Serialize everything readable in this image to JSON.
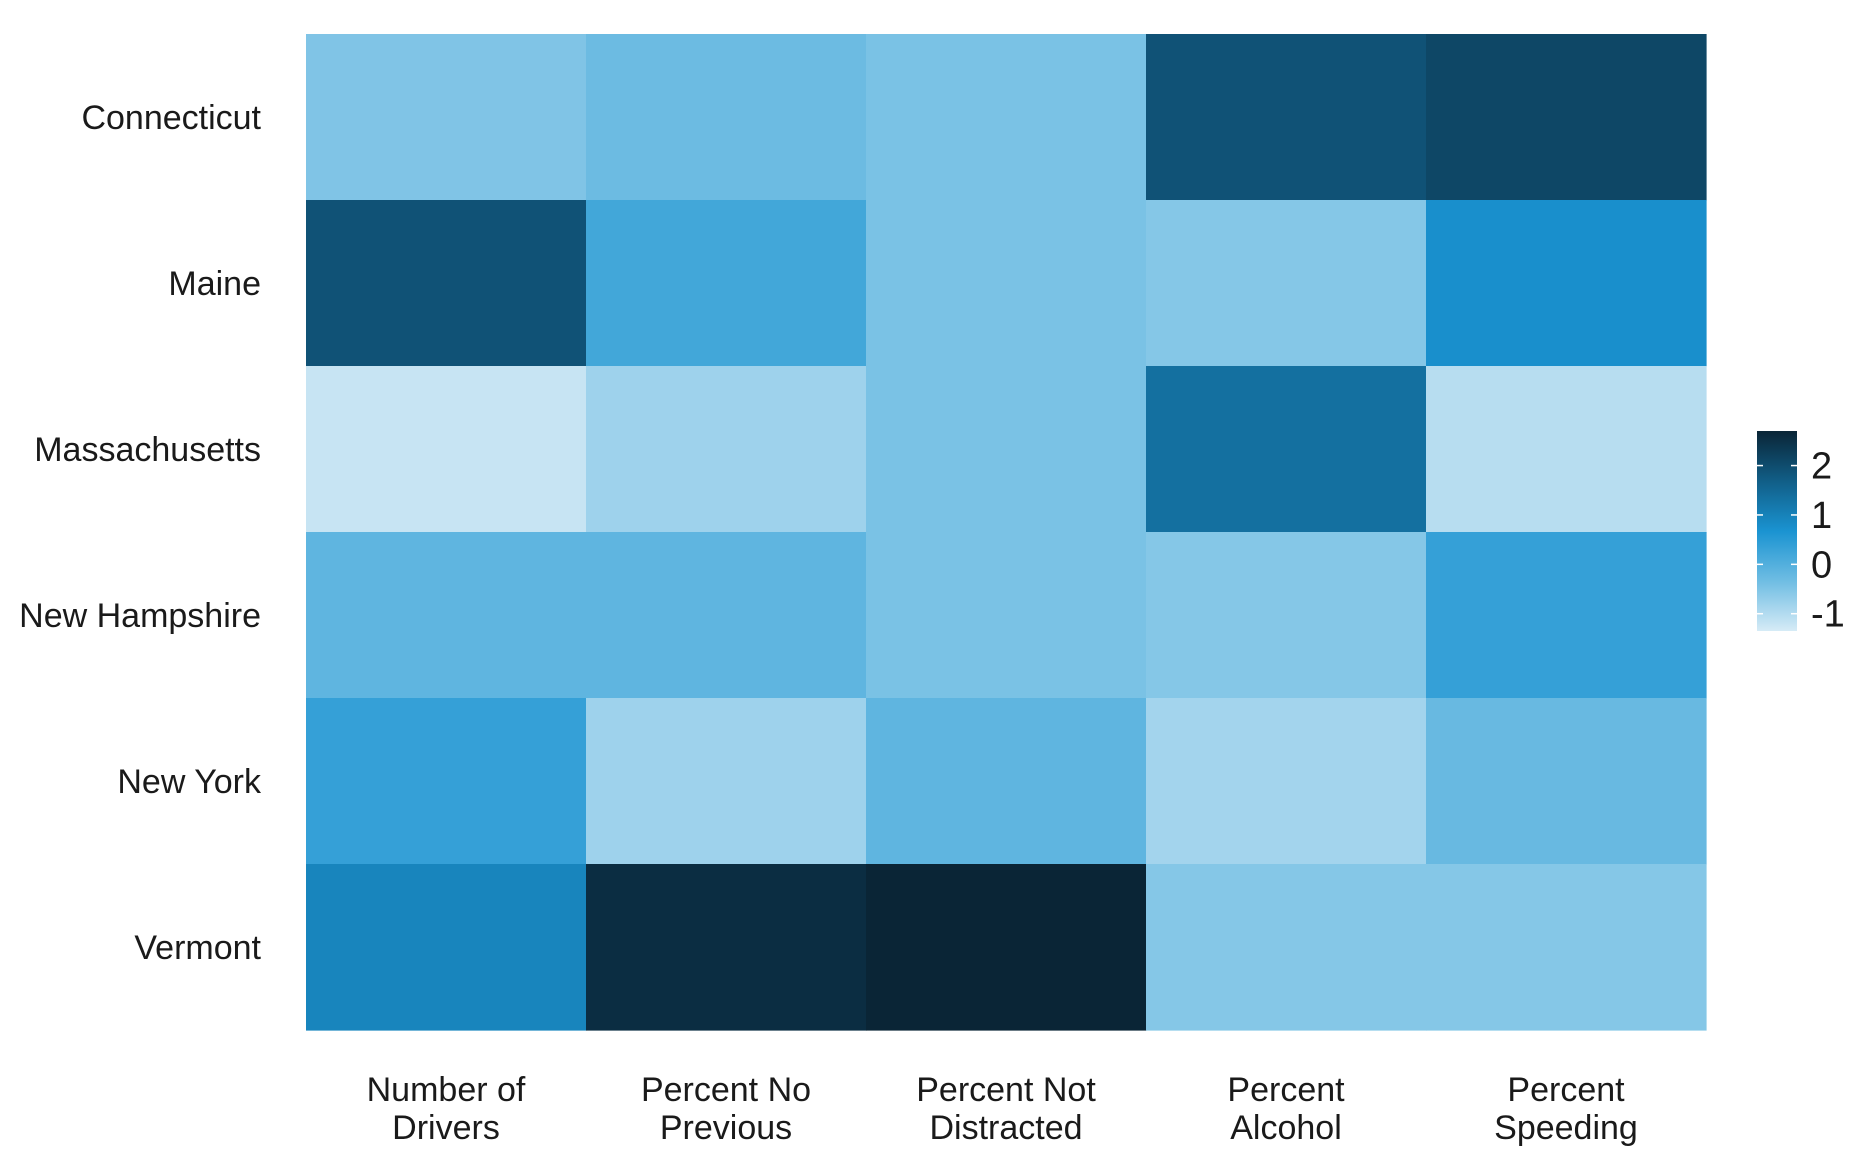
{
  "chart_data": {
    "type": "heatmap",
    "title": "",
    "xlabel": "",
    "ylabel": "",
    "rows": [
      "Connecticut",
      "Maine",
      "Massachusetts",
      "New Hampshire",
      "New York",
      "Vermont"
    ],
    "columns": [
      [
        "Number of",
        "Drivers"
      ],
      [
        "Percent No",
        "Previous"
      ],
      [
        "Percent Not",
        "Distracted"
      ],
      [
        "Percent",
        "Alcohol"
      ],
      [
        "Percent",
        "Speeding"
      ]
    ],
    "values": [
      [
        -0.5,
        -0.3,
        -0.45,
        1.9,
        2.1
      ],
      [
        1.9,
        0.2,
        -0.45,
        -0.55,
        0.75
      ],
      [
        -1.2,
        -0.8,
        -0.45,
        1.35,
        -1.05
      ],
      [
        -0.15,
        -0.15,
        -0.45,
        -0.55,
        0.35
      ],
      [
        0.35,
        -0.8,
        -0.15,
        -0.85,
        -0.25
      ],
      [
        0.95,
        2.55,
        2.7,
        -0.55,
        -0.55
      ]
    ],
    "legend": {
      "position": "right",
      "ticks": [
        2,
        1,
        0,
        -1
      ],
      "min": -1.35,
      "max": 2.7,
      "colors": [
        "#d6ebf6",
        "#6fbde3",
        "#1a93d1",
        "#115e87",
        "#0a2536"
      ]
    },
    "grid": false
  }
}
